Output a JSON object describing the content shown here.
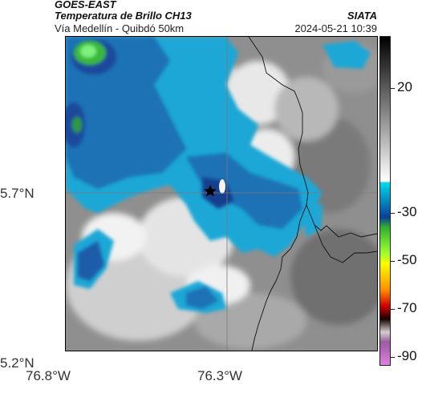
{
  "header": {
    "product": "GOES-EAST",
    "subtitle": "Temperatura de Brillo CH13",
    "region": "Vía Medellín - Quibdó 50km",
    "organization": "SIATA",
    "datetime": "2024-05-21 10:39"
  },
  "axes": {
    "lat_ticks": [
      "5.7°N",
      "5.2°N"
    ],
    "lon_ticks": [
      "76.8°W",
      "76.3°W"
    ]
  },
  "colorbar": {
    "tick_labels": [
      "20",
      "-30",
      "-50",
      "-70",
      "-90"
    ]
  },
  "map": {
    "marker_icon": "star-icon"
  }
}
